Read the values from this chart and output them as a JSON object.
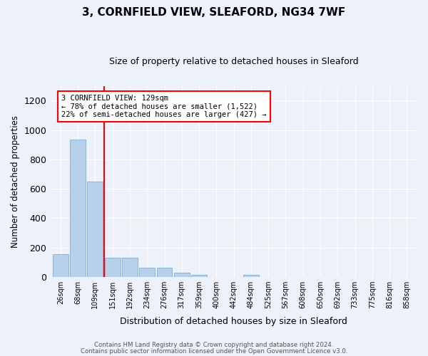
{
  "title": "3, CORNFIELD VIEW, SLEAFORD, NG34 7WF",
  "subtitle": "Size of property relative to detached houses in Sleaford",
  "xlabel": "Distribution of detached houses by size in Sleaford",
  "ylabel": "Number of detached properties",
  "bar_labels": [
    "26sqm",
    "68sqm",
    "109sqm",
    "151sqm",
    "192sqm",
    "234sqm",
    "276sqm",
    "317sqm",
    "359sqm",
    "400sqm",
    "442sqm",
    "484sqm",
    "525sqm",
    "567sqm",
    "608sqm",
    "650sqm",
    "692sqm",
    "733sqm",
    "775sqm",
    "816sqm",
    "858sqm"
  ],
  "bar_values": [
    155,
    935,
    650,
    130,
    130,
    65,
    65,
    28,
    15,
    0,
    0,
    15,
    0,
    0,
    0,
    0,
    0,
    0,
    0,
    0,
    0
  ],
  "bar_color": "#b8d0ea",
  "bar_edge_color": "#7aafd4",
  "redline_x": 2.5,
  "annotation_text": "3 CORNFIELD VIEW: 129sqm\n← 78% of detached houses are smaller (1,522)\n22% of semi-detached houses are larger (427) →",
  "ylim": [
    0,
    1300
  ],
  "yticks": [
    0,
    200,
    400,
    600,
    800,
    1000,
    1200
  ],
  "bg_color": "#edf1fa",
  "grid_color": "#ffffff",
  "footer1": "Contains HM Land Registry data © Crown copyright and database right 2024.",
  "footer2": "Contains public sector information licensed under the Open Government Licence v3.0."
}
